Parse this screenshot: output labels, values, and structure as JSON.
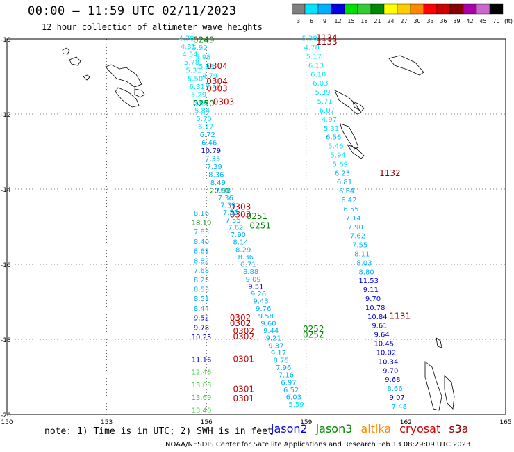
{
  "header": {
    "title": "00:00 – 11:59 UTC 02/11/2023",
    "subtitle": "12 hour collection of altimeter wave heights"
  },
  "colorbar": {
    "unit": "(ft)",
    "bins": [
      {
        "label": "3",
        "color": "#808080"
      },
      {
        "label": "6",
        "color": "#00e5ff"
      },
      {
        "label": "9",
        "color": "#00b0ff"
      },
      {
        "label": "12",
        "color": "#0000e0"
      },
      {
        "label": "15",
        "color": "#00dd00"
      },
      {
        "label": "18",
        "color": "#33cc33"
      },
      {
        "label": "21",
        "color": "#008800"
      },
      {
        "label": "24",
        "color": "#ffff00"
      },
      {
        "label": "27",
        "color": "#ffcc00"
      },
      {
        "label": "30",
        "color": "#ff8800"
      },
      {
        "label": "33",
        "color": "#ff0000"
      },
      {
        "label": "36",
        "color": "#cc0000"
      },
      {
        "label": "39",
        "color": "#880000"
      },
      {
        "label": "42",
        "color": "#aa00aa"
      },
      {
        "label": "45",
        "color": "#cc66cc"
      },
      {
        "label": "70",
        "color": "#000000"
      }
    ]
  },
  "map": {
    "lon_ticks": [
      "150",
      "153",
      "156",
      "159",
      "162",
      "165"
    ],
    "lat_ticks": [
      "-10",
      "-12",
      "-14",
      "-16",
      "-18",
      "-20"
    ],
    "lon_range": [
      150,
      165
    ],
    "lat_range": [
      -20,
      -10
    ],
    "track_labels": [
      {
        "text": "0249",
        "lon": 155.6,
        "lat": -10.1,
        "color": "#008800"
      },
      {
        "text": "0304",
        "lon": 156.0,
        "lat": -10.8,
        "color": "#cc0000"
      },
      {
        "text": "0304",
        "lon": 156.0,
        "lat": -11.2,
        "color": "#cc0000"
      },
      {
        "text": "0303",
        "lon": 156.0,
        "lat": -11.4,
        "color": "#cc0000"
      },
      {
        "text": "0250",
        "lon": 155.6,
        "lat": -11.8,
        "color": "#008800"
      },
      {
        "text": "0303",
        "lon": 156.2,
        "lat": -11.75,
        "color": "#cc0000"
      },
      {
        "text": "1134",
        "lon": 159.3,
        "lat": -10.05,
        "color": "#880000"
      },
      {
        "text": "1133",
        "lon": 159.3,
        "lat": -10.15,
        "color": "#880000"
      },
      {
        "text": "1132",
        "lon": 161.2,
        "lat": -13.65,
        "color": "#880000"
      },
      {
        "text": "0303",
        "lon": 156.7,
        "lat": -14.55,
        "color": "#cc0000"
      },
      {
        "text": "0303",
        "lon": 156.7,
        "lat": -14.75,
        "color": "#cc0000"
      },
      {
        "text": "0251",
        "lon": 157.2,
        "lat": -14.8,
        "color": "#008800"
      },
      {
        "text": "0251",
        "lon": 157.3,
        "lat": -15.05,
        "color": "#008800"
      },
      {
        "text": "0302",
        "lon": 156.7,
        "lat": -17.5,
        "color": "#cc0000"
      },
      {
        "text": "0302",
        "lon": 156.7,
        "lat": -17.65,
        "color": "#cc0000"
      },
      {
        "text": "0302",
        "lon": 156.8,
        "lat": -17.85,
        "color": "#cc0000"
      },
      {
        "text": "0302",
        "lon": 156.8,
        "lat": -18.0,
        "color": "#cc0000"
      },
      {
        "text": "0252",
        "lon": 158.9,
        "lat": -17.8,
        "color": "#008800"
      },
      {
        "text": "0252",
        "lon": 158.9,
        "lat": -17.95,
        "color": "#008800"
      },
      {
        "text": "1131",
        "lon": 161.5,
        "lat": -17.45,
        "color": "#880000"
      },
      {
        "text": "0301",
        "lon": 156.8,
        "lat": -18.6,
        "color": "#cc0000"
      },
      {
        "text": "0301",
        "lon": 156.8,
        "lat": -19.4,
        "color": "#cc0000"
      },
      {
        "text": "0301",
        "lon": 156.8,
        "lat": -19.65,
        "color": "#cc0000"
      }
    ],
    "tracks": [
      {
        "name": "track-a",
        "start": [
          155.4,
          -10.05
        ],
        "end": [
          156.4,
          -14.1
        ],
        "values": [
          "4.78",
          "4.31",
          "4.54",
          "5.78",
          "5.31",
          "5.50",
          "6.31",
          "5.29",
          "5.60",
          "5.84",
          "5.70",
          "6.17",
          "6.72",
          "6.46",
          "10.79",
          "7.35",
          "7.39",
          "8.36",
          "8.49",
          "20.09"
        ],
        "colors": [
          "#00e5ff",
          "#00e5ff",
          "#00e5ff",
          "#00e5ff",
          "#00e5ff",
          "#00e5ff",
          "#00e5ff",
          "#00e5ff",
          "#00e5ff",
          "#00e5ff",
          "#00e5ff",
          "#00e5ff",
          "#00b0ff",
          "#00b0ff",
          "#0000e0",
          "#00b0ff",
          "#00b0ff",
          "#00b0ff",
          "#00b0ff",
          "#008800"
        ]
      },
      {
        "name": "track-b",
        "start": [
          155.8,
          -10.3
        ],
        "end": [
          156.2,
          -11.3
        ],
        "values": [
          "5.92",
          "5.98",
          "5.98",
          "4.79",
          "4.79"
        ],
        "colors": [
          "#00e5ff",
          "#00e5ff",
          "#00e5ff",
          "#00e5ff",
          "#00e5ff"
        ]
      },
      {
        "name": "track-c",
        "start": [
          156.5,
          -14.1
        ],
        "end": [
          158.7,
          -19.8
        ],
        "values": [
          "7.98",
          "7.36",
          "7.39",
          "7.52",
          "7.55",
          "7.62",
          "7.90",
          "8.14",
          "8.29",
          "8.36",
          "8.71",
          "8.88",
          "9.09",
          "9.51",
          "9.26",
          "9.43",
          "9.76",
          "9.58",
          "9.60",
          "9.44",
          "9.21",
          "9.37",
          "9.17",
          "8.75",
          "7.96",
          "7.16",
          "6.97",
          "6.52",
          "6.03",
          "5.59"
        ],
        "colors": [
          "#00b0ff",
          "#00b0ff",
          "#00b0ff",
          "#00b0ff",
          "#00b0ff",
          "#00b0ff",
          "#00b0ff",
          "#00b0ff",
          "#00b0ff",
          "#00b0ff",
          "#00b0ff",
          "#00b0ff",
          "#00b0ff",
          "#0000e0",
          "#00b0ff",
          "#00b0ff",
          "#00b0ff",
          "#00b0ff",
          "#00b0ff",
          "#00b0ff",
          "#00b0ff",
          "#00b0ff",
          "#00b0ff",
          "#00b0ff",
          "#00b0ff",
          "#00b0ff",
          "#00b0ff",
          "#00b0ff",
          "#00b0ff",
          "#00e5ff"
        ]
      },
      {
        "name": "track-d",
        "start": [
          155.85,
          -14.7
        ],
        "end": [
          155.85,
          -18.0
        ],
        "values": [
          "8.16",
          "18.19",
          "7.83",
          "8.40",
          "8.61",
          "8.82",
          "7.68",
          "8.25",
          "8.53",
          "8.51",
          "8.44",
          "9.52",
          "9.78",
          "10.25"
        ],
        "colors": [
          "#00b0ff",
          "#008800",
          "#00b0ff",
          "#00b0ff",
          "#00b0ff",
          "#00b0ff",
          "#00b0ff",
          "#00b0ff",
          "#00b0ff",
          "#00b0ff",
          "#00b0ff",
          "#0000e0",
          "#0000e0",
          "#0000e0"
        ]
      },
      {
        "name": "track-e",
        "start": [
          155.85,
          -18.6
        ],
        "end": [
          155.85,
          -19.95
        ],
        "values": [
          "11.16",
          "12.46",
          "13.03",
          "13.69",
          "13.40"
        ],
        "colors": [
          "#0000e0",
          "#33cc33",
          "#33cc33",
          "#33cc33",
          "#33cc33"
        ]
      },
      {
        "name": "track-f",
        "start": [
          159.1,
          -10.05
        ],
        "end": [
          161.8,
          -19.85
        ],
        "values": [
          "5.38",
          "4.78",
          "5.17",
          "6.13",
          "6.10",
          "6.03",
          "5.39",
          "5.71",
          "6.07",
          "4.97",
          "5.31",
          "6.56",
          "5.46",
          "5.94",
          "5.69",
          "6.23",
          "6.81",
          "6.64",
          "6.42",
          "6.55",
          "7.14",
          "7.90",
          "7.62",
          "7.55",
          "8.11",
          "8.03",
          "8.80",
          "11.53",
          "9.11",
          "9.70",
          "10.78",
          "10.84",
          "9.61",
          "9.64",
          "10.45",
          "10.02",
          "10.34",
          "9.70",
          "9.68",
          "8.66",
          "9.07",
          "7.48"
        ],
        "colors": [
          "#00e5ff",
          "#00e5ff",
          "#00e5ff",
          "#00e5ff",
          "#00e5ff",
          "#00e5ff",
          "#00e5ff",
          "#00e5ff",
          "#00e5ff",
          "#00e5ff",
          "#00e5ff",
          "#00b0ff",
          "#00e5ff",
          "#00e5ff",
          "#00e5ff",
          "#00b0ff",
          "#00b0ff",
          "#00b0ff",
          "#00b0ff",
          "#00b0ff",
          "#00b0ff",
          "#00b0ff",
          "#00b0ff",
          "#00b0ff",
          "#00b0ff",
          "#00b0ff",
          "#00b0ff",
          "#0000e0",
          "#0000e0",
          "#0000e0",
          "#0000e0",
          "#0000e0",
          "#0000e0",
          "#0000e0",
          "#0000e0",
          "#0000e0",
          "#0000e0",
          "#0000e0",
          "#0000e0",
          "#00b0ff",
          "#0000e0",
          "#00b0ff"
        ]
      }
    ]
  },
  "footer": {
    "note": "note: 1) Time is in UTC; 2) SWH is in feet",
    "credit": "NOAA/NESDIS Center for Satellite Applications and Research   Feb 13 08:29:09 UTC 2023",
    "satellites": [
      {
        "label": "jason2",
        "color": "#0000e0"
      },
      {
        "label": "jason3",
        "color": "#008800"
      },
      {
        "label": "altika",
        "color": "#ff8800"
      },
      {
        "label": "cryosat",
        "color": "#cc0000"
      },
      {
        "label": "s3a",
        "color": "#880000"
      }
    ]
  }
}
